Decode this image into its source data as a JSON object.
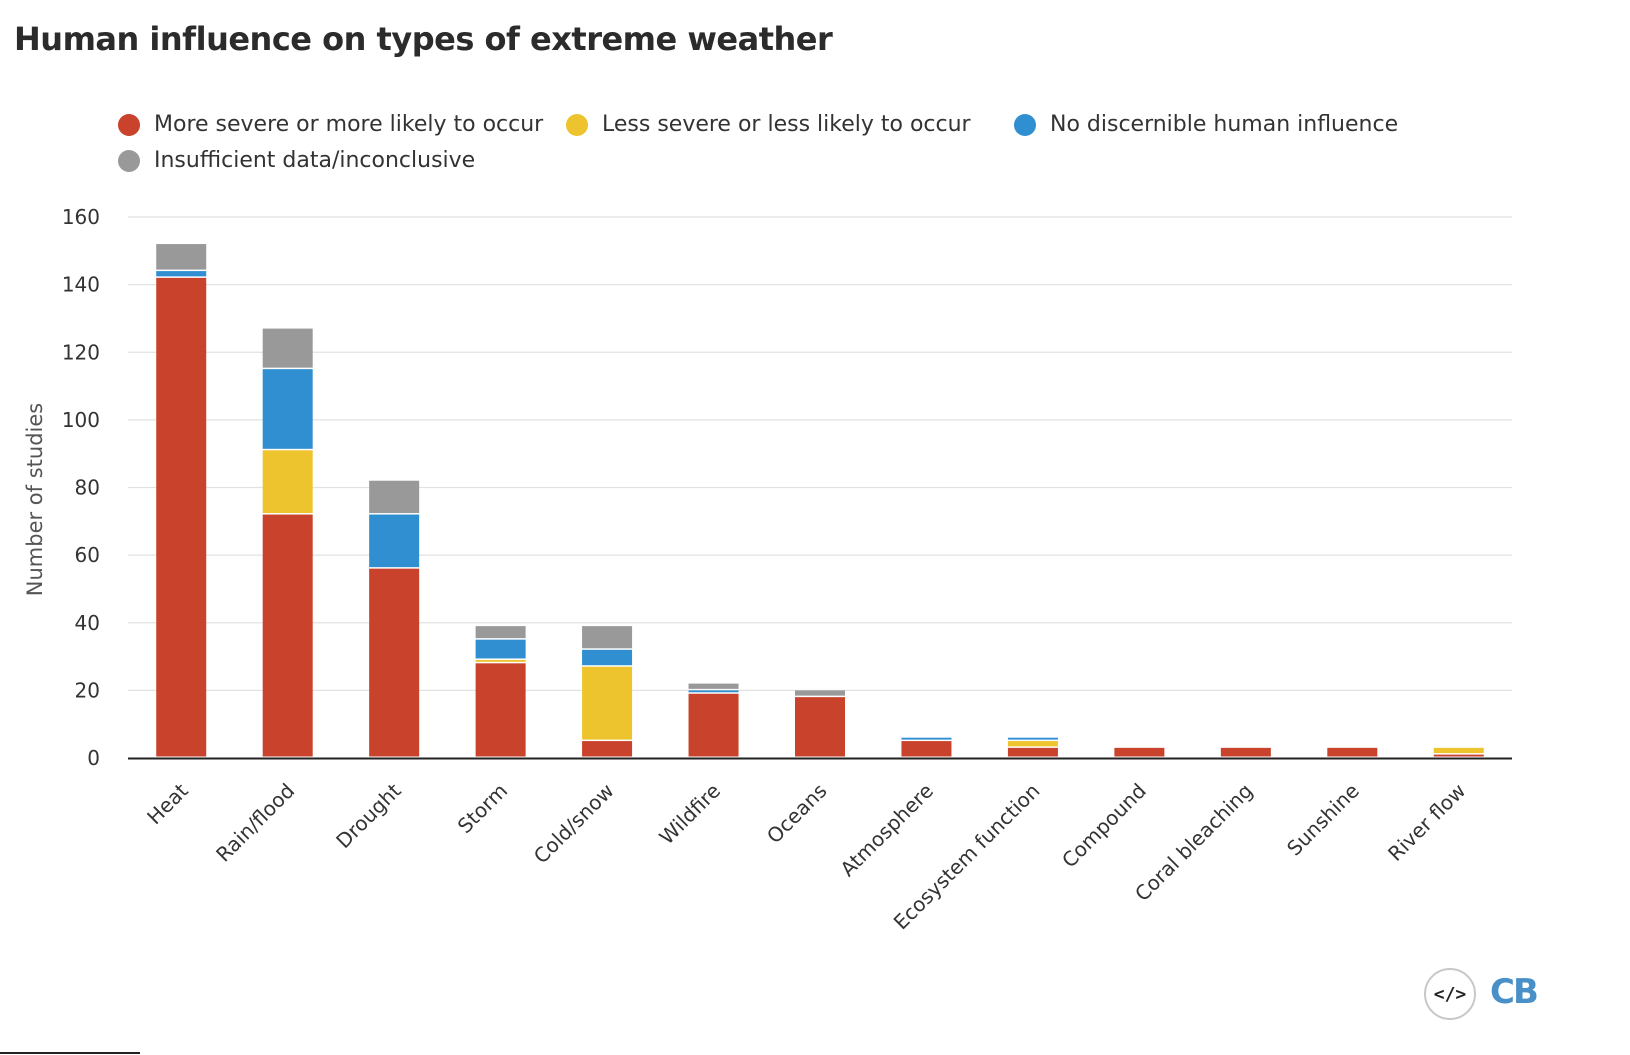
{
  "title": "Human influence on types of extreme weather",
  "legend": [
    {
      "label": "More severe or more likely to occur",
      "color": "#c8422c"
    },
    {
      "label": "Less severe or less likely to occur",
      "color": "#eec42e"
    },
    {
      "label": "No discernible human influence",
      "color": "#2f8fd0"
    },
    {
      "label": "Insufficient data/inconclusive",
      "color": "#999999"
    }
  ],
  "footer": {
    "embed_icon": "</>",
    "logo_text": "CB"
  },
  "chart_data": {
    "type": "bar",
    "stacked": true,
    "title": "Human influence on types of extreme weather",
    "xlabel": "",
    "ylabel": "Number of studies",
    "ylim": [
      0,
      160
    ],
    "yticks": [
      0,
      20,
      40,
      60,
      80,
      100,
      120,
      140,
      160
    ],
    "grid": true,
    "legend_position": "top",
    "categories": [
      "Heat",
      "Rain/flood",
      "Drought",
      "Storm",
      "Cold/snow",
      "Wildfire",
      "Oceans",
      "Atmosphere",
      "Ecosystem function",
      "Compound",
      "Coral bleaching",
      "Sunshine",
      "River flow"
    ],
    "series": [
      {
        "name": "More severe or more likely to occur",
        "color": "#c8422c",
        "values": [
          142,
          72,
          56,
          28,
          5,
          19,
          18,
          5,
          3,
          3,
          3,
          3,
          1
        ]
      },
      {
        "name": "Less severe or less likely to occur",
        "color": "#eec42e",
        "values": [
          0,
          19,
          0,
          1,
          22,
          0,
          0,
          0,
          2,
          0,
          0,
          0,
          2
        ]
      },
      {
        "name": "No discernible human influence",
        "color": "#2f8fd0",
        "values": [
          2,
          24,
          16,
          6,
          5,
          1,
          0,
          1,
          1,
          0,
          0,
          0,
          0
        ]
      },
      {
        "name": "Insufficient data/inconclusive",
        "color": "#999999",
        "values": [
          8,
          12,
          10,
          4,
          7,
          2,
          2,
          0,
          0,
          0,
          0,
          0,
          0
        ]
      }
    ]
  }
}
